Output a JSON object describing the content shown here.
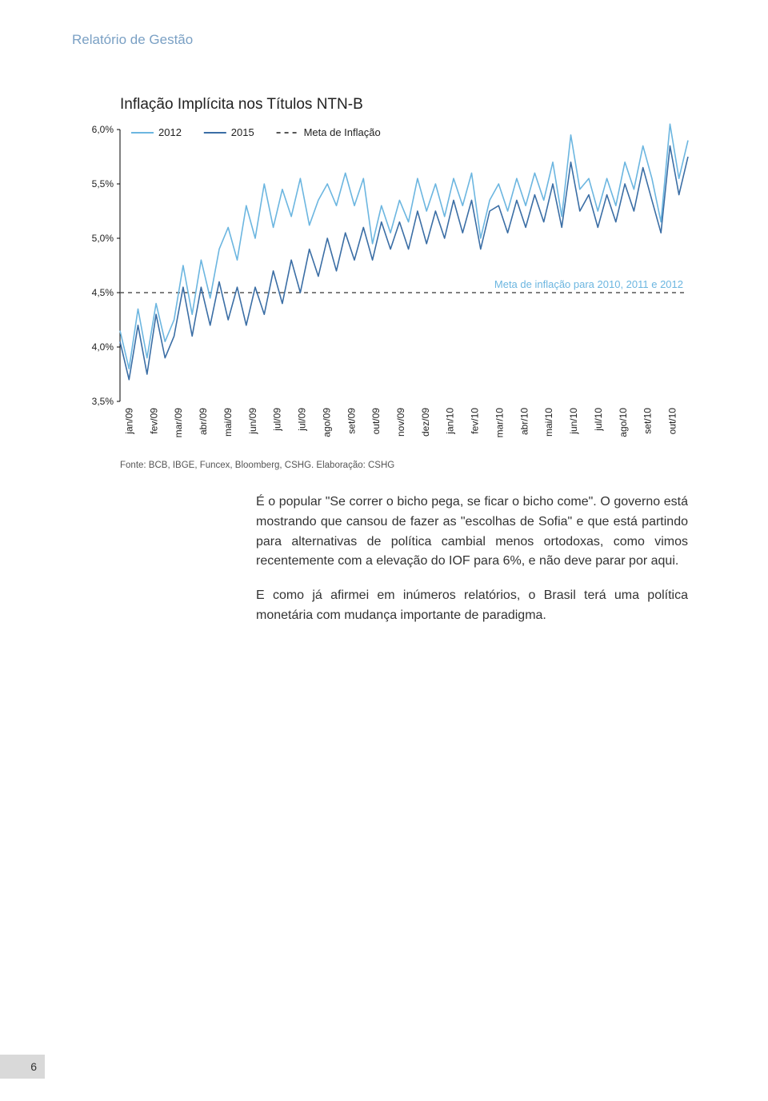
{
  "header": {
    "section_label": "Relatório de Gestão"
  },
  "chart": {
    "type": "line",
    "title": "Inflação Implícita nos Títulos NTN-B",
    "source": "Fonte: BCB, IBGE, Funcex, Bloomberg, CSHG.  Elaboração: CSHG",
    "x_labels": [
      "jan/09",
      "fev/09",
      "mar/09",
      "abr/09",
      "mai/09",
      "jun/09",
      "jul/09",
      "jul/09",
      "ago/09",
      "set/09",
      "out/09",
      "nov/09",
      "dez/09",
      "jan/10",
      "fev/10",
      "mar/10",
      "abr/10",
      "mai/10",
      "jun/10",
      "jul/10",
      "ago/10",
      "set/10",
      "out/10"
    ],
    "y_ticks": [
      "3,5%",
      "4,0%",
      "4,5%",
      "5,0%",
      "5,5%",
      "6,0%"
    ],
    "ylim": [
      3.5,
      6.0
    ],
    "tick_fontsize": 12,
    "tick_color": "#222222",
    "legend": {
      "items": [
        {
          "label": "2012",
          "color": "#6cb6e0",
          "style": "solid"
        },
        {
          "label": "2015",
          "color": "#3b6ea5",
          "style": "solid"
        },
        {
          "label": "Meta de Inflação",
          "color": "#555555",
          "style": "dashed"
        }
      ],
      "fontsize": 13
    },
    "annotation": {
      "text": "Meta de inflação para 2010, 2011 e 2012",
      "color": "#6cb6e0",
      "fontsize": 13
    },
    "target_line": {
      "value": 4.5,
      "color": "#555555",
      "dash": "5,5",
      "width": 1.4
    },
    "series_2012": {
      "color": "#6cb6e0",
      "width": 1.6,
      "values": [
        4.15,
        3.8,
        4.35,
        3.9,
        4.4,
        4.05,
        4.25,
        4.75,
        4.3,
        4.8,
        4.45,
        4.9,
        5.1,
        4.8,
        5.3,
        5.0,
        5.5,
        5.1,
        5.45,
        5.2,
        5.55,
        5.12,
        5.35,
        5.5,
        5.3,
        5.6,
        5.3,
        5.55,
        4.95,
        5.3,
        5.05,
        5.35,
        5.15,
        5.55,
        5.25,
        5.5,
        5.2,
        5.55,
        5.3,
        5.6,
        5.0,
        5.35,
        5.5,
        5.25,
        5.55,
        5.3,
        5.6,
        5.35,
        5.7,
        5.2,
        5.95,
        5.45,
        5.55,
        5.25,
        5.55,
        5.3,
        5.7,
        5.45,
        5.85,
        5.55,
        5.15,
        6.05,
        5.55,
        5.9
      ]
    },
    "series_2015": {
      "color": "#3b6ea5",
      "width": 1.6,
      "values": [
        4.05,
        3.7,
        4.2,
        3.75,
        4.3,
        3.9,
        4.1,
        4.55,
        4.1,
        4.55,
        4.2,
        4.6,
        4.25,
        4.55,
        4.2,
        4.55,
        4.3,
        4.7,
        4.4,
        4.8,
        4.5,
        4.9,
        4.65,
        5.0,
        4.7,
        5.05,
        4.8,
        5.1,
        4.8,
        5.15,
        4.9,
        5.15,
        4.9,
        5.25,
        4.95,
        5.25,
        5.0,
        5.35,
        5.05,
        5.35,
        4.9,
        5.25,
        5.3,
        5.05,
        5.35,
        5.1,
        5.4,
        5.15,
        5.5,
        5.1,
        5.7,
        5.25,
        5.4,
        5.1,
        5.4,
        5.15,
        5.5,
        5.25,
        5.65,
        5.35,
        5.05,
        5.85,
        5.4,
        5.75
      ]
    },
    "background_color": "#ffffff"
  },
  "body": {
    "p1": "É o popular \"Se correr o bicho pega, se ficar o bicho come\". O governo está mostrando que cansou de fazer as \"escolhas de Sofia\" e que está partindo para alternativas de política cambial menos ortodoxas, como vimos recentemente com a elevação do IOF para 6%, e não deve parar por aqui.",
    "p2": "E como já afirmei em inúmeros relatórios, o Brasil terá uma política monetária com mudança importante de paradigma."
  },
  "page_number": "6"
}
